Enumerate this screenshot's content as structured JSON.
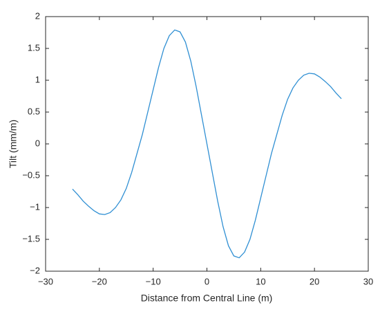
{
  "chart_data": {
    "type": "line",
    "xlabel": "Distance from Central Line (m)",
    "ylabel": "Tilt (mm/m)",
    "x": [
      -25,
      -24,
      -23,
      -22,
      -21,
      -20,
      -19,
      -18,
      -17,
      -16,
      -15,
      -14,
      -13,
      -12,
      -11,
      -10,
      -9,
      -8,
      -7,
      -6,
      -5,
      -4,
      -3,
      -2,
      -1,
      0,
      1,
      2,
      3,
      4,
      5,
      6,
      7,
      8,
      9,
      10,
      11,
      12,
      13,
      14,
      15,
      16,
      17,
      18,
      19,
      20,
      21,
      22,
      23,
      24,
      25
    ],
    "series": [
      {
        "color": "#2f8fd3",
        "values": [
          -0.71,
          -0.8,
          -0.9,
          -0.98,
          -1.05,
          -1.1,
          -1.11,
          -1.08,
          -1.0,
          -0.88,
          -0.7,
          -0.45,
          -0.15,
          0.15,
          0.5,
          0.85,
          1.2,
          1.5,
          1.7,
          1.79,
          1.76,
          1.6,
          1.3,
          0.9,
          0.45,
          0,
          -0.45,
          -0.9,
          -1.3,
          -1.6,
          -1.76,
          -1.79,
          -1.7,
          -1.5,
          -1.2,
          -0.85,
          -0.5,
          -0.15,
          0.15,
          0.45,
          0.7,
          0.88,
          1.0,
          1.08,
          1.11,
          1.1,
          1.05,
          0.98,
          0.9,
          0.8,
          0.71
        ]
      }
    ],
    "xlim": [
      -30,
      30
    ],
    "xticks": [
      {
        "value": -30,
        "label": "−30"
      },
      {
        "value": -20,
        "label": "−20"
      },
      {
        "value": -10,
        "label": "−10"
      },
      0,
      10,
      20,
      30
    ],
    "ylim": [
      -2,
      2
    ],
    "yticks": [
      {
        "value": -2,
        "label": "−2"
      },
      {
        "value": -1.5,
        "label": "−1.5"
      },
      {
        "value": -1,
        "label": "−1"
      },
      {
        "value": -0.5,
        "label": "−0.5"
      },
      0,
      0.5,
      1,
      1.5,
      2
    ]
  }
}
